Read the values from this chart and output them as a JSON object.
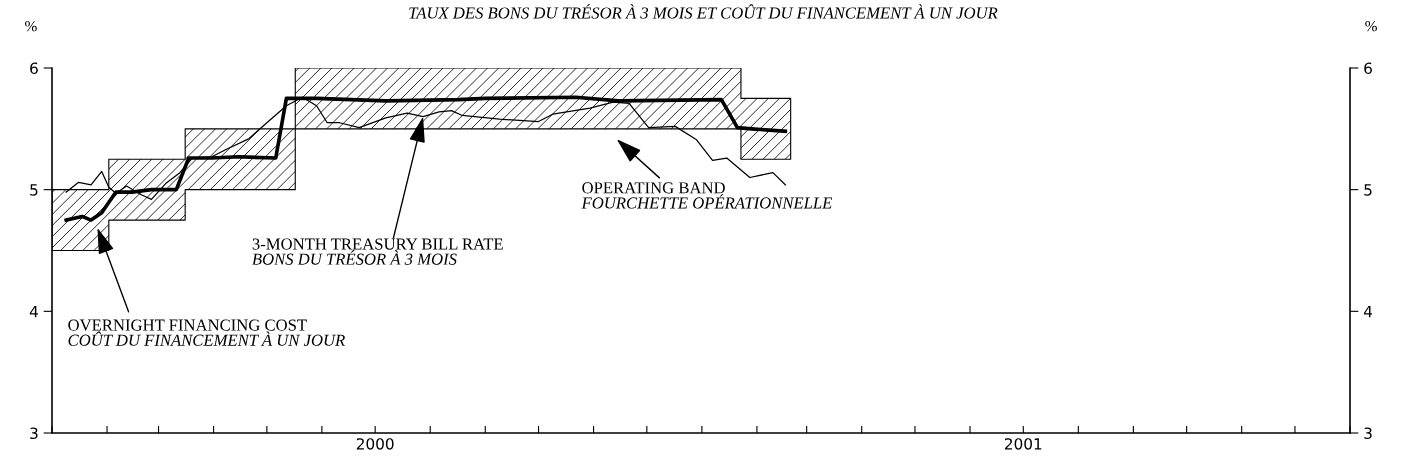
{
  "chart_data": {
    "type": "line",
    "title": "TAUX DES BONS DU TRÉSOR À 3 MOIS ET COÛT DU FINANCEMENT À UN JOUR",
    "ylabel": "%",
    "y2label": "%",
    "xlim": [
      "2000-01-01",
      "2002-01-01"
    ],
    "xticks": [
      {
        "value": "2000-01-01",
        "label": null
      },
      {
        "value": "2000-02-01",
        "label": null
      },
      {
        "value": "2000-03-01",
        "label": null
      },
      {
        "value": "2000-04-01",
        "label": null
      },
      {
        "value": "2000-05-01",
        "label": null
      },
      {
        "value": "2000-06-01",
        "label": null
      },
      {
        "value": "2000-07-01",
        "label": "2000"
      },
      {
        "value": "2000-08-01",
        "label": null
      },
      {
        "value": "2000-09-01",
        "label": null
      },
      {
        "value": "2000-10-01",
        "label": null
      },
      {
        "value": "2000-11-01",
        "label": null
      },
      {
        "value": "2000-12-01",
        "label": null
      },
      {
        "value": "2001-01-01",
        "label": null
      },
      {
        "value": "2001-02-01",
        "label": null
      },
      {
        "value": "2001-03-01",
        "label": null
      },
      {
        "value": "2001-04-01",
        "label": null
      },
      {
        "value": "2001-05-01",
        "label": null
      },
      {
        "value": "2001-06-01",
        "label": null
      },
      {
        "value": "2001-07-01",
        "label": "2001"
      },
      {
        "value": "2001-08-01",
        "label": null
      },
      {
        "value": "2001-09-01",
        "label": null
      },
      {
        "value": "2001-10-01",
        "label": null
      },
      {
        "value": "2001-11-01",
        "label": null
      },
      {
        "value": "2001-12-01",
        "label": null
      },
      {
        "value": "2002-01-01",
        "label": null
      }
    ],
    "ylim": [
      3,
      6
    ],
    "yticks": [
      3,
      4,
      5,
      6
    ],
    "y2lim": [
      3,
      6
    ],
    "y2ticks": [
      3,
      4,
      5,
      6
    ],
    "grid": false,
    "legend": false,
    "series": [
      {
        "type": "area",
        "line_style": "solid",
        "color": "#000000",
        "x": [
          "2000-01-01",
          "2000-02-02",
          "2000-03-16",
          "2000-05-17",
          "2001-01-23",
          "2001-02-20"
        ],
        "values": [
          null,
          null,
          null,
          null,
          null,
          null
        ],
        "lower": [
          4.5,
          4.75,
          5.0,
          5.5,
          5.25,
          5.25
        ],
        "upper": [
          5.0,
          5.25,
          5.5,
          6.0,
          5.75,
          5.75
        ]
      },
      {
        "color": "#000000",
        "x": [
          "2000-01-09",
          "2000-01-18",
          "2000-01-23",
          "2000-01-29",
          "2000-02-06",
          "2000-02-15",
          "2000-02-26",
          "2000-03-11",
          "2000-03-18",
          "2000-03-31",
          "2000-04-15",
          "2000-05-06",
          "2000-05-12",
          "2000-05-29",
          "2000-07-07",
          "2000-08-17",
          "2000-09-01",
          "2000-10-22",
          "2000-11-15",
          "2001-01-12",
          "2001-01-21",
          "2001-01-29",
          "2001-02-17"
        ],
        "values": [
          4.75,
          4.78,
          4.75,
          4.81,
          4.98,
          4.98,
          5.0,
          5.0,
          5.26,
          5.26,
          5.27,
          5.26,
          5.75,
          5.75,
          5.73,
          5.74,
          5.75,
          5.76,
          5.73,
          5.74,
          5.51,
          5.5,
          5.48
        ]
      },
      {
        "color": "#000000",
        "x": [
          "2000-01-09",
          "2000-01-16",
          "2000-01-23",
          "2000-01-29",
          "2000-02-02",
          "2000-02-06",
          "2000-02-12",
          "2000-02-20",
          "2000-02-26",
          "2000-03-05",
          "2000-03-13",
          "2000-03-20",
          "2000-03-31",
          "2000-04-08",
          "2000-04-21",
          "2000-05-01",
          "2000-05-12",
          "2000-05-21",
          "2000-05-29",
          "2000-06-04",
          "2000-06-11",
          "2000-06-22",
          "2000-07-07",
          "2000-07-19",
          "2000-07-28",
          "2000-08-06",
          "2000-08-13",
          "2000-08-19",
          "2000-09-09",
          "2000-10-01",
          "2000-10-09",
          "2000-10-30",
          "2000-11-12",
          "2000-11-21",
          "2000-12-02",
          "2000-12-17",
          "2000-12-29",
          "2001-01-07",
          "2001-01-15",
          "2001-01-28",
          "2001-02-10",
          "2001-02-17"
        ],
        "values": [
          4.98,
          5.06,
          5.04,
          5.15,
          5.02,
          4.97,
          5.03,
          4.96,
          4.92,
          5.05,
          5.14,
          5.26,
          5.27,
          5.33,
          5.42,
          5.55,
          5.69,
          5.76,
          5.69,
          5.55,
          5.55,
          5.51,
          5.59,
          5.63,
          5.6,
          5.64,
          5.65,
          5.61,
          5.58,
          5.56,
          5.62,
          5.67,
          5.72,
          5.71,
          5.51,
          5.52,
          5.41,
          5.24,
          5.26,
          5.1,
          5.14,
          5.04
        ]
      }
    ],
    "annotations": [
      "OVERNIGHT FINANCING COST\nCOÛT DU FINANCEMENT À UN JOUR",
      {
        "text": "3-MONTH TREASURY BILL RATE\nBONS DU TRÉSOR À 3 MOIS",
        "x": "2000-07-28",
        "y": 5.6
      },
      "OPERATING BAND\nFOURCHETTE OPÉRATIONNELLE"
    ]
  }
}
